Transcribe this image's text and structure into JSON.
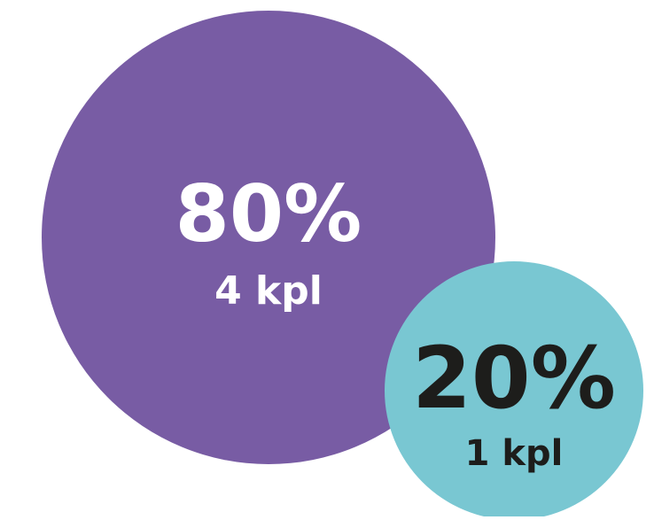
{
  "chart_data": {
    "type": "bubble",
    "title": "",
    "series": [
      {
        "label": "80%",
        "sublabel": "4 kpl",
        "percent": 80,
        "count": 4,
        "color": "#785ca4",
        "text_color": "#ffffff"
      },
      {
        "label": "20%",
        "sublabel": "1 kpl",
        "percent": 20,
        "count": 1,
        "color": "#79c7d2",
        "text_color": "#1d1d1b"
      }
    ]
  }
}
